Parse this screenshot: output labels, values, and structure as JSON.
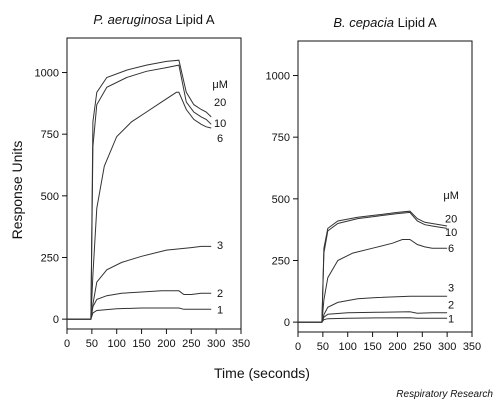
{
  "figure": {
    "xlabel": "Time (seconds)",
    "ylabel": "Response Units",
    "credit": "Respiratory Research",
    "unit_label": "μM"
  },
  "chart_data": [
    {
      "type": "line",
      "title_italic": "P. aeruginosa",
      "title_rest": " Lipid A",
      "xlabel": "Time (seconds)",
      "ylabel": "Response Units",
      "xlim": [
        0,
        350
      ],
      "ylim": [
        -40,
        1140
      ],
      "xticks": [
        0,
        50,
        100,
        150,
        200,
        250,
        300,
        350
      ],
      "yticks": [
        0,
        250,
        500,
        750,
        1000
      ],
      "grid": false,
      "legend": "none",
      "series": [
        {
          "name": "20",
          "label_y": 880,
          "points": [
            [
              0,
              0
            ],
            [
              48,
              0
            ],
            [
              52,
              800
            ],
            [
              60,
              920
            ],
            [
              80,
              980
            ],
            [
              120,
              1010
            ],
            [
              160,
              1030
            ],
            [
              200,
              1045
            ],
            [
              225,
              1050
            ],
            [
              240,
              920
            ],
            [
              255,
              870
            ],
            [
              270,
              850
            ],
            [
              280,
              840
            ],
            [
              290,
              820
            ]
          ]
        },
        {
          "name": "10",
          "label_y": 795,
          "points": [
            [
              0,
              0
            ],
            [
              48,
              0
            ],
            [
              52,
              700
            ],
            [
              60,
              870
            ],
            [
              80,
              940
            ],
            [
              120,
              980
            ],
            [
              160,
              1005
            ],
            [
              200,
              1020
            ],
            [
              225,
              1030
            ],
            [
              240,
              880
            ],
            [
              255,
              840
            ],
            [
              270,
              820
            ],
            [
              280,
              810
            ],
            [
              290,
              790
            ]
          ]
        },
        {
          "name": "6",
          "label_y": 735,
          "points": [
            [
              0,
              0
            ],
            [
              48,
              0
            ],
            [
              52,
              180
            ],
            [
              60,
              450
            ],
            [
              75,
              620
            ],
            [
              100,
              740
            ],
            [
              130,
              800
            ],
            [
              160,
              840
            ],
            [
              190,
              880
            ],
            [
              220,
              920
            ],
            [
              225,
              920
            ],
            [
              240,
              850
            ],
            [
              255,
              810
            ],
            [
              270,
              790
            ],
            [
              280,
              780
            ],
            [
              290,
              775
            ]
          ]
        },
        {
          "name": "3",
          "label_y": 300,
          "points": [
            [
              0,
              0
            ],
            [
              48,
              0
            ],
            [
              52,
              60
            ],
            [
              60,
              150
            ],
            [
              80,
              200
            ],
            [
              110,
              230
            ],
            [
              150,
              255
            ],
            [
              200,
              280
            ],
            [
              225,
              285
            ],
            [
              250,
              290
            ],
            [
              270,
              295
            ],
            [
              290,
              295
            ]
          ]
        },
        {
          "name": "2",
          "label_y": 105,
          "points": [
            [
              0,
              0
            ],
            [
              48,
              0
            ],
            [
              52,
              50
            ],
            [
              60,
              80
            ],
            [
              80,
              95
            ],
            [
              110,
              105
            ],
            [
              150,
              110
            ],
            [
              190,
              115
            ],
            [
              225,
              115
            ],
            [
              235,
              100
            ],
            [
              250,
              100
            ],
            [
              270,
              105
            ],
            [
              290,
              105
            ]
          ]
        },
        {
          "name": "1",
          "label_y": 40,
          "points": [
            [
              0,
              0
            ],
            [
              48,
              0
            ],
            [
              52,
              25
            ],
            [
              60,
              35
            ],
            [
              100,
              42
            ],
            [
              150,
              45
            ],
            [
              225,
              45
            ],
            [
              235,
              40
            ],
            [
              260,
              40
            ],
            [
              290,
              40
            ]
          ]
        }
      ]
    },
    {
      "type": "line",
      "title_italic": "B. cepacia",
      "title_rest": " Lipid A",
      "xlabel": "Time (seconds)",
      "ylabel": "Response Units",
      "xlim": [
        0,
        350
      ],
      "ylim": [
        -40,
        1140
      ],
      "xticks": [
        0,
        50,
        100,
        150,
        200,
        250,
        300,
        350
      ],
      "yticks": [
        0,
        250,
        500,
        750,
        1000
      ],
      "grid": false,
      "legend": "none",
      "series": [
        {
          "name": "20",
          "label_y": 420,
          "points": [
            [
              0,
              0
            ],
            [
              48,
              0
            ],
            [
              52,
              300
            ],
            [
              60,
              380
            ],
            [
              80,
              410
            ],
            [
              120,
              425
            ],
            [
              160,
              435
            ],
            [
              200,
              445
            ],
            [
              225,
              450
            ],
            [
              240,
              420
            ],
            [
              255,
              405
            ],
            [
              270,
              400
            ],
            [
              285,
              395
            ],
            [
              300,
              390
            ]
          ]
        },
        {
          "name": "10",
          "label_y": 365,
          "points": [
            [
              0,
              0
            ],
            [
              48,
              0
            ],
            [
              52,
              280
            ],
            [
              60,
              370
            ],
            [
              80,
              400
            ],
            [
              120,
              420
            ],
            [
              160,
              430
            ],
            [
              200,
              440
            ],
            [
              225,
              445
            ],
            [
              240,
              410
            ],
            [
              255,
              395
            ],
            [
              270,
              390
            ],
            [
              285,
              385
            ],
            [
              300,
              380
            ]
          ]
        },
        {
          "name": "6",
          "label_y": 300,
          "points": [
            [
              0,
              0
            ],
            [
              48,
              0
            ],
            [
              52,
              90
            ],
            [
              60,
              180
            ],
            [
              80,
              250
            ],
            [
              110,
              280
            ],
            [
              150,
              300
            ],
            [
              190,
              320
            ],
            [
              210,
              335
            ],
            [
              225,
              335
            ],
            [
              240,
              315
            ],
            [
              255,
              305
            ],
            [
              270,
              300
            ],
            [
              285,
              300
            ],
            [
              300,
              300
            ]
          ]
        },
        {
          "name": "3",
          "label_y": 140,
          "points": [
            [
              0,
              0
            ],
            [
              48,
              0
            ],
            [
              52,
              30
            ],
            [
              60,
              60
            ],
            [
              80,
              80
            ],
            [
              120,
              95
            ],
            [
              160,
              100
            ],
            [
              225,
              105
            ],
            [
              250,
              105
            ],
            [
              275,
              105
            ],
            [
              300,
              105
            ]
          ]
        },
        {
          "name": "2",
          "label_y": 72,
          "points": [
            [
              0,
              0
            ],
            [
              48,
              0
            ],
            [
              52,
              20
            ],
            [
              60,
              32
            ],
            [
              100,
              38
            ],
            [
              160,
              40
            ],
            [
              225,
              42
            ],
            [
              240,
              36
            ],
            [
              270,
              38
            ],
            [
              300,
              38
            ]
          ]
        },
        {
          "name": "1",
          "label_y": 15,
          "points": [
            [
              0,
              0
            ],
            [
              48,
              0
            ],
            [
              52,
              10
            ],
            [
              60,
              14
            ],
            [
              100,
              16
            ],
            [
              160,
              17
            ],
            [
              225,
              18
            ],
            [
              240,
              16
            ],
            [
              270,
              16
            ],
            [
              300,
              16
            ]
          ]
        }
      ]
    }
  ]
}
